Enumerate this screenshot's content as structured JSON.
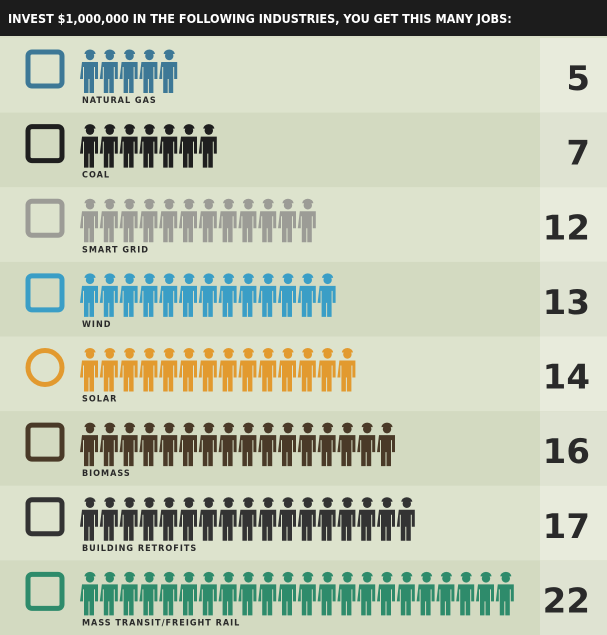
{
  "chart_data": {
    "type": "pictogram",
    "title": "INVEST $1,000,000 IN THE FOLLOWING INDUSTRIES, YOU GET THIS MANY JOBS:",
    "categories": [
      "NATURAL GAS",
      "COAL",
      "SMART GRID",
      "WIND",
      "SOLAR",
      "BIOMASS",
      "BUILDING RETROFITS",
      "MASS TRANSIT/FREIGHT RAIL"
    ],
    "values": [
      5,
      7,
      12,
      13,
      14,
      16,
      17,
      22
    ],
    "colors": [
      "#3d7896",
      "#1f1f1f",
      "#9c9c96",
      "#3a9ec6",
      "#e29a2f",
      "#4a3a28",
      "#333333",
      "#2e8b6b"
    ]
  }
}
